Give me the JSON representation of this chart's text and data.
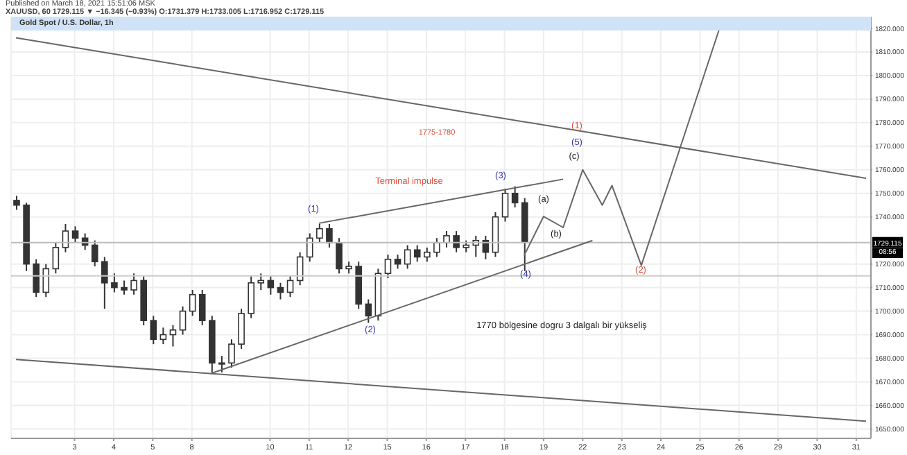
{
  "chart_data": {
    "type": "candlestick",
    "title": "Gold Spot / U.S. Dollar, 1h",
    "subtitle": "XAUUSD, 60  1729.115 ▼ −16.345 (−0.93%) O:1731.379 H:1733.005 L:1716.952 C:1729.115",
    "categories": [
      null,
      null,
      null,
      null,
      null,
      null,
      "3",
      null,
      null,
      null,
      "4",
      null,
      null,
      null,
      "5",
      null,
      null,
      null,
      "8",
      null,
      null,
      null,
      null,
      null,
      null,
      null,
      "10",
      null,
      null,
      null,
      "11",
      null,
      null,
      null,
      "12",
      null,
      null,
      null,
      "15",
      null,
      null,
      null,
      "16",
      null,
      null,
      null,
      "17",
      null,
      null,
      null,
      "18",
      null,
      null,
      null,
      "19",
      null,
      null,
      null,
      "22",
      null,
      null,
      null,
      "23",
      null,
      null,
      null,
      "24",
      null,
      null,
      null,
      "25",
      null,
      null,
      null,
      "26",
      null,
      null,
      null,
      "29",
      null,
      null,
      null,
      "30",
      null,
      null,
      null,
      "31",
      null
    ],
    "ohlc": [
      [
        1747,
        1749,
        1743,
        1745
      ],
      [
        1745,
        1746,
        1717,
        1720
      ],
      [
        1720,
        1722,
        1706,
        1708
      ],
      [
        1708,
        1720,
        1706,
        1718
      ],
      [
        1718,
        1729,
        1716,
        1727
      ],
      [
        1727,
        1737,
        1725,
        1734
      ],
      [
        1734,
        1736,
        1729,
        1731
      ],
      [
        1731,
        1733,
        1726,
        1728
      ],
      [
        1728,
        1730,
        1719,
        1721
      ],
      [
        1721,
        1723,
        1701,
        1712
      ],
      [
        1712,
        1716,
        1708,
        1710
      ],
      [
        1710,
        1713,
        1707,
        1709
      ],
      [
        1709,
        1716,
        1707,
        1713
      ],
      [
        1713,
        1715,
        1694,
        1696
      ],
      [
        1696,
        1698,
        1686,
        1688
      ],
      [
        1688,
        1693,
        1686,
        1690
      ],
      [
        1690,
        1694,
        1685,
        1692
      ],
      [
        1692,
        1702,
        1690,
        1700
      ],
      [
        1700,
        1709,
        1698,
        1707
      ],
      [
        1707,
        1709,
        1694,
        1696
      ],
      [
        1696,
        1698,
        1674,
        1678
      ],
      [
        1678,
        1681,
        1674,
        1678
      ],
      [
        1678,
        1688,
        1676,
        1686
      ],
      [
        1686,
        1701,
        1684,
        1699
      ],
      [
        1699,
        1715,
        1697,
        1712
      ],
      [
        1712,
        1716,
        1709,
        1713
      ],
      [
        1713,
        1715,
        1707,
        1710
      ],
      [
        1710,
        1712,
        1705,
        1708
      ],
      [
        1708,
        1715,
        1706,
        1713
      ],
      [
        1713,
        1725,
        1711,
        1723
      ],
      [
        1723,
        1733,
        1721,
        1731
      ],
      [
        1731,
        1737,
        1729,
        1735
      ],
      [
        1735,
        1737,
        1727,
        1729
      ],
      [
        1729,
        1731,
        1716,
        1718
      ],
      [
        1718,
        1721,
        1716,
        1719
      ],
      [
        1719,
        1721,
        1701,
        1703
      ],
      [
        1703,
        1705,
        1695,
        1698
      ],
      [
        1698,
        1718,
        1696,
        1716
      ],
      [
        1716,
        1724,
        1714,
        1722
      ],
      [
        1722,
        1724,
        1718,
        1720
      ],
      [
        1720,
        1728,
        1718,
        1726
      ],
      [
        1726,
        1728,
        1721,
        1723
      ],
      [
        1723,
        1727,
        1721,
        1725
      ],
      [
        1725,
        1731,
        1723,
        1729
      ],
      [
        1729,
        1734,
        1727,
        1732
      ],
      [
        1732,
        1734,
        1725,
        1727
      ],
      [
        1727,
        1730,
        1725,
        1728
      ],
      [
        1728,
        1732,
        1723,
        1730
      ],
      [
        1730,
        1732,
        1722,
        1725
      ],
      [
        1725,
        1742,
        1723,
        1740
      ],
      [
        1740,
        1752,
        1738,
        1750
      ],
      [
        1750,
        1753,
        1744,
        1746
      ],
      [
        1746,
        1748,
        1717,
        1729.115
      ],
      null,
      null,
      null,
      null,
      null,
      null,
      null,
      null,
      null,
      null,
      null,
      null,
      null,
      null,
      null,
      null,
      null,
      null,
      null,
      null,
      null,
      null,
      null,
      null,
      null,
      null,
      null,
      null,
      null,
      null,
      null,
      null,
      null,
      null,
      null
    ],
    "color": "#333333",
    "series": [
      {
        "type": "line",
        "color": "#666666",
        "values": [
          1816,
          null,
          null,
          null,
          null,
          null,
          null,
          null,
          null,
          null,
          null,
          null,
          null,
          null,
          null,
          null,
          null,
          null,
          null,
          null,
          null,
          null,
          null,
          null,
          null,
          null,
          null,
          null,
          null,
          null,
          null,
          null,
          null,
          null,
          null,
          null,
          null,
          null,
          null,
          null,
          null,
          null,
          null,
          null,
          null,
          null,
          null,
          null,
          null,
          null,
          null,
          null,
          null,
          null,
          null,
          null,
          null,
          null,
          null,
          null,
          null,
          null,
          null,
          null,
          null,
          null,
          null,
          null,
          null,
          null,
          null,
          null,
          null,
          null,
          null,
          null,
          null,
          null,
          null,
          null,
          null,
          null,
          null,
          null,
          null,
          null,
          null,
          1756.4
        ]
      },
      {
        "type": "line",
        "color": "#666666",
        "values": [
          1679.5,
          null,
          null,
          null,
          null,
          null,
          null,
          null,
          null,
          null,
          null,
          null,
          null,
          null,
          null,
          null,
          null,
          null,
          null,
          null,
          null,
          null,
          null,
          null,
          null,
          null,
          null,
          null,
          null,
          null,
          null,
          null,
          null,
          null,
          null,
          null,
          null,
          null,
          null,
          null,
          null,
          null,
          null,
          null,
          null,
          null,
          null,
          null,
          null,
          null,
          null,
          null,
          null,
          null,
          null,
          null,
          null,
          null,
          null,
          null,
          null,
          null,
          null,
          null,
          null,
          null,
          null,
          null,
          null,
          null,
          null,
          null,
          null,
          null,
          null,
          null,
          null,
          null,
          null,
          null,
          null,
          null,
          null,
          null,
          null,
          null,
          null,
          1653.3
        ]
      },
      {
        "type": "line",
        "color": "#666666",
        "values": [
          null,
          null,
          null,
          null,
          null,
          null,
          null,
          null,
          null,
          null,
          null,
          null,
          null,
          null,
          null,
          null,
          null,
          null,
          null,
          null,
          1673.6,
          null,
          null,
          null,
          null,
          null,
          null,
          null,
          null,
          null,
          null,
          null,
          null,
          null,
          null,
          null,
          null,
          null,
          null,
          null,
          null,
          null,
          null,
          null,
          null,
          null,
          null,
          null,
          null,
          null,
          null,
          null,
          null,
          null,
          null,
          null,
          null,
          null,
          null,
          1730,
          null,
          null,
          null,
          null,
          null,
          null,
          null,
          null,
          null,
          null,
          null,
          null,
          null,
          null,
          null,
          null,
          null,
          null,
          null,
          null,
          null,
          null,
          null,
          null,
          null,
          null,
          null,
          null
        ]
      },
      {
        "type": "line",
        "color": "#666666",
        "values": [
          null,
          null,
          null,
          null,
          null,
          null,
          null,
          null,
          null,
          null,
          null,
          null,
          null,
          null,
          null,
          null,
          null,
          null,
          null,
          null,
          null,
          null,
          null,
          null,
          null,
          null,
          null,
          null,
          null,
          null,
          null,
          1737.3,
          null,
          null,
          null,
          null,
          null,
          null,
          null,
          null,
          null,
          null,
          null,
          null,
          null,
          null,
          null,
          null,
          null,
          null,
          null,
          null,
          null,
          null,
          null,
          null,
          1756,
          null,
          null,
          null,
          null,
          null,
          null,
          null,
          null,
          null,
          null,
          null,
          null,
          null,
          null,
          null,
          null,
          null,
          null,
          null,
          null,
          null,
          null,
          null,
          null,
          null,
          null,
          null,
          null,
          null,
          null,
          null
        ]
      },
      {
        "type": "line",
        "color": "#666666",
        "values": [
          null,
          null,
          null,
          null,
          null,
          null,
          null,
          null,
          null,
          null,
          null,
          null,
          null,
          null,
          null,
          null,
          null,
          null,
          null,
          null,
          null,
          null,
          null,
          null,
          null,
          null,
          null,
          null,
          null,
          null,
          null,
          null,
          null,
          null,
          null,
          null,
          null,
          null,
          null,
          null,
          null,
          null,
          null,
          null,
          null,
          null,
          null,
          null,
          null,
          null,
          null,
          null,
          1723.6,
          null,
          1740.2,
          null,
          1735.5,
          null,
          1760,
          null,
          1745,
          1753.3,
          null,
          null,
          1719.4,
          null,
          null,
          null,
          null,
          null,
          null,
          null,
          1820,
          null,
          null,
          null,
          null,
          null,
          null,
          null,
          null,
          null,
          null,
          null,
          null,
          null,
          null,
          null
        ]
      }
    ],
    "ylim": [
      1646,
      1825
    ],
    "yticks": [
      {
        "value": 1650,
        "label": "1650.000"
      },
      {
        "value": 1660,
        "label": "1660.000"
      },
      {
        "value": 1670,
        "label": "1670.000"
      },
      {
        "value": 1680,
        "label": "1680.000"
      },
      {
        "value": 1690,
        "label": "1690.000"
      },
      {
        "value": 1700,
        "label": "1700.000"
      },
      {
        "value": 1710,
        "label": "1710.000"
      },
      {
        "value": 1720,
        "label": "1720.000"
      },
      {
        "value": 1740,
        "label": "1740.000"
      },
      {
        "value": 1750,
        "label": "1750.000"
      },
      {
        "value": 1760,
        "label": "1760.000"
      },
      {
        "value": 1770,
        "label": "1770.000"
      },
      {
        "value": 1780,
        "label": "1780.000"
      },
      {
        "value": 1790,
        "label": "1790.000"
      },
      {
        "value": 1800,
        "label": "1800.000"
      },
      {
        "value": 1810,
        "label": "1810.000"
      },
      {
        "value": 1820,
        "label": "1820.000"
      }
    ],
    "grid": true,
    "ref_lines": [
      {
        "axis": "y",
        "value": 1729.115,
        "label": "1729.115",
        "color": "#bbbbbb"
      },
      {
        "axis": "y",
        "value": 1715,
        "color": "#cccccc"
      }
    ],
    "annotations": [
      "Published on March 18, 2021 15:51:06 MSK",
      "(1)",
      "(2)",
      "(3)",
      "(4)",
      "(5)",
      "(1)",
      "(2)",
      "(a)",
      "(b)",
      "(c)",
      "Terminal impulse",
      "1775-1780",
      "1770 bölgesine dogru 3 dalgalı bir yükseliş",
      {
        "text": "08:56",
        "y": 1729.115
      }
    ]
  }
}
